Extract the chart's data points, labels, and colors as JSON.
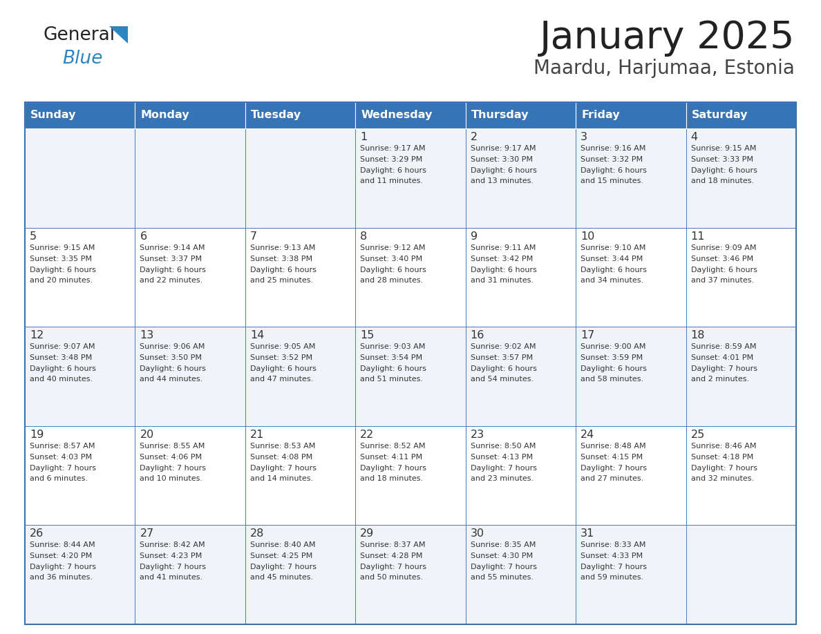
{
  "title": "January 2025",
  "subtitle": "Maardu, Harjumaa, Estonia",
  "days_of_week": [
    "Sunday",
    "Monday",
    "Tuesday",
    "Wednesday",
    "Thursday",
    "Friday",
    "Saturday"
  ],
  "header_bg": "#3674b5",
  "header_text_color": "#ffffff",
  "cell_bg_even": "#f0f4f8",
  "cell_bg_odd": "#ffffff",
  "cell_text_color": "#333333",
  "grid_color": "#3674b5",
  "title_color": "#222222",
  "subtitle_color": "#444444",
  "logo_general_color": "#222222",
  "logo_blue_color": "#2e86c1",
  "calendar_data": [
    [
      {
        "day": "",
        "sunrise": "",
        "sunset": "",
        "daylight": ""
      },
      {
        "day": "",
        "sunrise": "",
        "sunset": "",
        "daylight": ""
      },
      {
        "day": "",
        "sunrise": "",
        "sunset": "",
        "daylight": ""
      },
      {
        "day": "1",
        "sunrise": "9:17 AM",
        "sunset": "3:29 PM",
        "daylight": "6 hours\nand 11 minutes."
      },
      {
        "day": "2",
        "sunrise": "9:17 AM",
        "sunset": "3:30 PM",
        "daylight": "6 hours\nand 13 minutes."
      },
      {
        "day": "3",
        "sunrise": "9:16 AM",
        "sunset": "3:32 PM",
        "daylight": "6 hours\nand 15 minutes."
      },
      {
        "day": "4",
        "sunrise": "9:15 AM",
        "sunset": "3:33 PM",
        "daylight": "6 hours\nand 18 minutes."
      }
    ],
    [
      {
        "day": "5",
        "sunrise": "9:15 AM",
        "sunset": "3:35 PM",
        "daylight": "6 hours\nand 20 minutes."
      },
      {
        "day": "6",
        "sunrise": "9:14 AM",
        "sunset": "3:37 PM",
        "daylight": "6 hours\nand 22 minutes."
      },
      {
        "day": "7",
        "sunrise": "9:13 AM",
        "sunset": "3:38 PM",
        "daylight": "6 hours\nand 25 minutes."
      },
      {
        "day": "8",
        "sunrise": "9:12 AM",
        "sunset": "3:40 PM",
        "daylight": "6 hours\nand 28 minutes."
      },
      {
        "day": "9",
        "sunrise": "9:11 AM",
        "sunset": "3:42 PM",
        "daylight": "6 hours\nand 31 minutes."
      },
      {
        "day": "10",
        "sunrise": "9:10 AM",
        "sunset": "3:44 PM",
        "daylight": "6 hours\nand 34 minutes."
      },
      {
        "day": "11",
        "sunrise": "9:09 AM",
        "sunset": "3:46 PM",
        "daylight": "6 hours\nand 37 minutes."
      }
    ],
    [
      {
        "day": "12",
        "sunrise": "9:07 AM",
        "sunset": "3:48 PM",
        "daylight": "6 hours\nand 40 minutes."
      },
      {
        "day": "13",
        "sunrise": "9:06 AM",
        "sunset": "3:50 PM",
        "daylight": "6 hours\nand 44 minutes."
      },
      {
        "day": "14",
        "sunrise": "9:05 AM",
        "sunset": "3:52 PM",
        "daylight": "6 hours\nand 47 minutes."
      },
      {
        "day": "15",
        "sunrise": "9:03 AM",
        "sunset": "3:54 PM",
        "daylight": "6 hours\nand 51 minutes."
      },
      {
        "day": "16",
        "sunrise": "9:02 AM",
        "sunset": "3:57 PM",
        "daylight": "6 hours\nand 54 minutes."
      },
      {
        "day": "17",
        "sunrise": "9:00 AM",
        "sunset": "3:59 PM",
        "daylight": "6 hours\nand 58 minutes."
      },
      {
        "day": "18",
        "sunrise": "8:59 AM",
        "sunset": "4:01 PM",
        "daylight": "7 hours\nand 2 minutes."
      }
    ],
    [
      {
        "day": "19",
        "sunrise": "8:57 AM",
        "sunset": "4:03 PM",
        "daylight": "7 hours\nand 6 minutes."
      },
      {
        "day": "20",
        "sunrise": "8:55 AM",
        "sunset": "4:06 PM",
        "daylight": "7 hours\nand 10 minutes."
      },
      {
        "day": "21",
        "sunrise": "8:53 AM",
        "sunset": "4:08 PM",
        "daylight": "7 hours\nand 14 minutes."
      },
      {
        "day": "22",
        "sunrise": "8:52 AM",
        "sunset": "4:11 PM",
        "daylight": "7 hours\nand 18 minutes."
      },
      {
        "day": "23",
        "sunrise": "8:50 AM",
        "sunset": "4:13 PM",
        "daylight": "7 hours\nand 23 minutes."
      },
      {
        "day": "24",
        "sunrise": "8:48 AM",
        "sunset": "4:15 PM",
        "daylight": "7 hours\nand 27 minutes."
      },
      {
        "day": "25",
        "sunrise": "8:46 AM",
        "sunset": "4:18 PM",
        "daylight": "7 hours\nand 32 minutes."
      }
    ],
    [
      {
        "day": "26",
        "sunrise": "8:44 AM",
        "sunset": "4:20 PM",
        "daylight": "7 hours\nand 36 minutes."
      },
      {
        "day": "27",
        "sunrise": "8:42 AM",
        "sunset": "4:23 PM",
        "daylight": "7 hours\nand 41 minutes."
      },
      {
        "day": "28",
        "sunrise": "8:40 AM",
        "sunset": "4:25 PM",
        "daylight": "7 hours\nand 45 minutes."
      },
      {
        "day": "29",
        "sunrise": "8:37 AM",
        "sunset": "4:28 PM",
        "daylight": "7 hours\nand 50 minutes."
      },
      {
        "day": "30",
        "sunrise": "8:35 AM",
        "sunset": "4:30 PM",
        "daylight": "7 hours\nand 55 minutes."
      },
      {
        "day": "31",
        "sunrise": "8:33 AM",
        "sunset": "4:33 PM",
        "daylight": "7 hours\nand 59 minutes."
      },
      {
        "day": "",
        "sunrise": "",
        "sunset": "",
        "daylight": ""
      }
    ]
  ]
}
